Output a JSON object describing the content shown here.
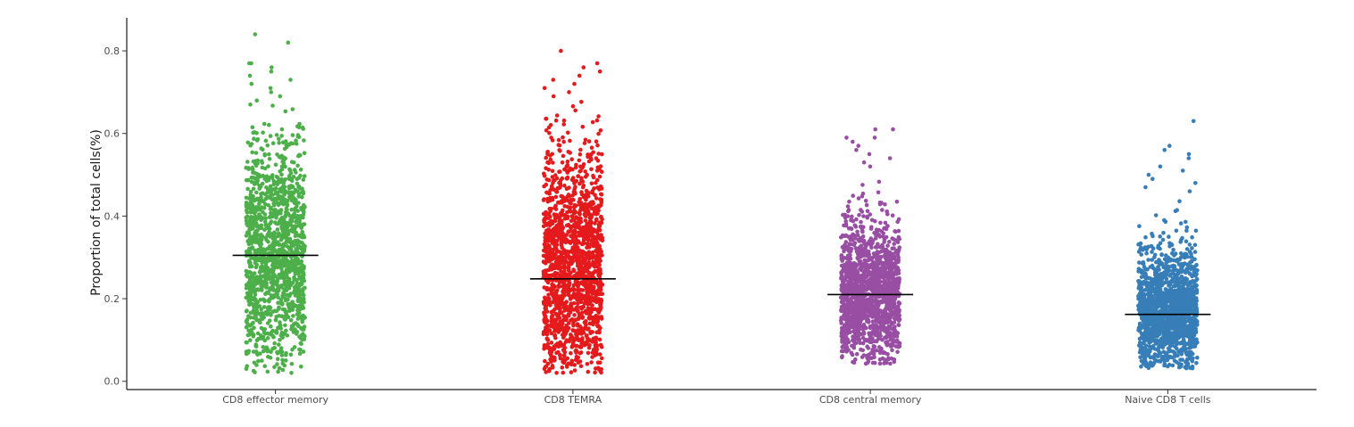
{
  "chart_data": {
    "type": "scatter",
    "subtype": "jitter-strip",
    "title": "",
    "xlabel": "",
    "ylabel": "Proportion of total cells(%)",
    "ylim": [
      -0.02,
      0.88
    ],
    "y_ticks": [
      0.0,
      0.2,
      0.4,
      0.6,
      0.8
    ],
    "y_tick_labels": [
      "0.0",
      "0.2",
      "0.4",
      "0.6",
      "0.8"
    ],
    "grid": false,
    "legend": "none",
    "categories": [
      "CD8 effector memory",
      "CD8 TEMRA",
      "CD8 central memory",
      "Naive CD8 T cells"
    ],
    "series": [
      {
        "category": "CD8 effector memory",
        "color": "#4daf4a",
        "median": 0.305,
        "n_points": 1400,
        "min": 0.02,
        "max": 0.84,
        "distribution": {
          "mean": 0.31,
          "sd": 0.14
        },
        "upper_points": [
          0.84,
          0.82,
          0.77,
          0.77,
          0.76,
          0.75,
          0.74,
          0.73,
          0.72,
          0.71,
          0.7,
          0.69,
          0.68,
          0.67
        ]
      },
      {
        "category": "CD8 TEMRA",
        "color": "#e41a1c",
        "median": 0.248,
        "n_points": 1600,
        "min": 0.02,
        "max": 0.8,
        "distribution": {
          "mean": 0.26,
          "sd": 0.15
        },
        "upper_points": [
          0.8,
          0.77,
          0.76,
          0.75,
          0.74,
          0.73,
          0.72,
          0.71,
          0.7,
          0.69
        ]
      },
      {
        "category": "CD8 central memory",
        "color": "#984ea3",
        "median": 0.21,
        "n_points": 1500,
        "min": 0.04,
        "max": 0.61,
        "distribution": {
          "mean": 0.21,
          "sd": 0.09
        },
        "upper_points": [
          0.61,
          0.61,
          0.59,
          0.59,
          0.58,
          0.57,
          0.56,
          0.55,
          0.54,
          0.53,
          0.52
        ]
      },
      {
        "category": "Naive CD8 T cells",
        "color": "#377eb8",
        "median": 0.162,
        "n_points": 1500,
        "min": 0.03,
        "max": 0.63,
        "distribution": {
          "mean": 0.17,
          "sd": 0.08
        },
        "upper_points": [
          0.63,
          0.57,
          0.56,
          0.55,
          0.54,
          0.52,
          0.51,
          0.5,
          0.49,
          0.48,
          0.47,
          0.46
        ]
      }
    ]
  }
}
